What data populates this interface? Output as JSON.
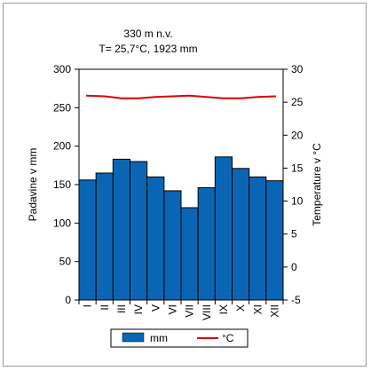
{
  "chart_data": {
    "type": "bar",
    "title_line1": "330 m n.v.",
    "title_line2": "T= 25,7°C, 1923 mm",
    "categories": [
      "I",
      "II",
      "III",
      "IV",
      "V",
      "VI",
      "VII",
      "VIII",
      "IX",
      "X",
      "XI",
      "XII"
    ],
    "series": [
      {
        "name": "mm",
        "type": "bar",
        "axis": "left",
        "color": "#0a66b4",
        "values": [
          156,
          165,
          183,
          180,
          160,
          142,
          120,
          146,
          186,
          171,
          160,
          155
        ]
      },
      {
        "name": "°C",
        "type": "line",
        "axis": "right",
        "color": "#dd0000",
        "values": [
          26.0,
          25.9,
          25.6,
          25.6,
          25.8,
          25.9,
          26.0,
          25.8,
          25.6,
          25.6,
          25.8,
          25.9
        ]
      }
    ],
    "ylabel_left": "Padavine v mm",
    "ylabel_right": "Temperature v °C",
    "ylim_left": [
      0,
      300
    ],
    "yticks_left": [
      0,
      50,
      100,
      150,
      200,
      250,
      300
    ],
    "ylim_right": [
      -5,
      30
    ],
    "yticks_right": [
      -5,
      0,
      5,
      10,
      15,
      20,
      25,
      30
    ],
    "grid": false,
    "legend_position": "bottom"
  }
}
